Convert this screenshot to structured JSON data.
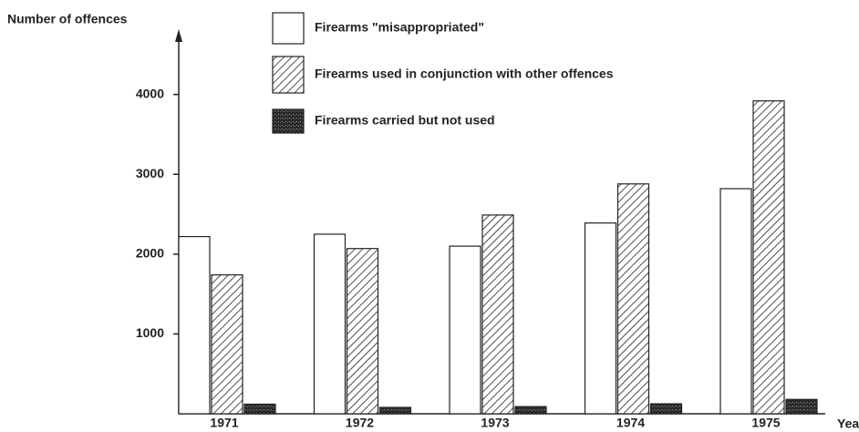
{
  "chart_data": {
    "type": "bar",
    "y_label": "Number of offences",
    "x_label": "Year",
    "categories": [
      "1971",
      "1972",
      "1973",
      "1974",
      "1975"
    ],
    "series": [
      {
        "name": "Firearms \"misappropriated\"",
        "color": "#ffffff",
        "pattern": "solid",
        "values": [
          2220,
          2250,
          2100,
          2390,
          2820
        ]
      },
      {
        "name": "Firearms used in  conjunction with other offences",
        "color": "#222222",
        "pattern": "diagonal",
        "values": [
          1740,
          2070,
          2490,
          2880,
          3920
        ]
      },
      {
        "name": "Firearms carried but not used",
        "color": "#2a2a2a",
        "pattern": "stipple",
        "values": [
          120,
          80,
          90,
          125,
          180
        ]
      }
    ],
    "ylim": [
      0,
      4750
    ],
    "yticks": [
      1000,
      2000,
      3000,
      4000
    ],
    "grid": false
  }
}
